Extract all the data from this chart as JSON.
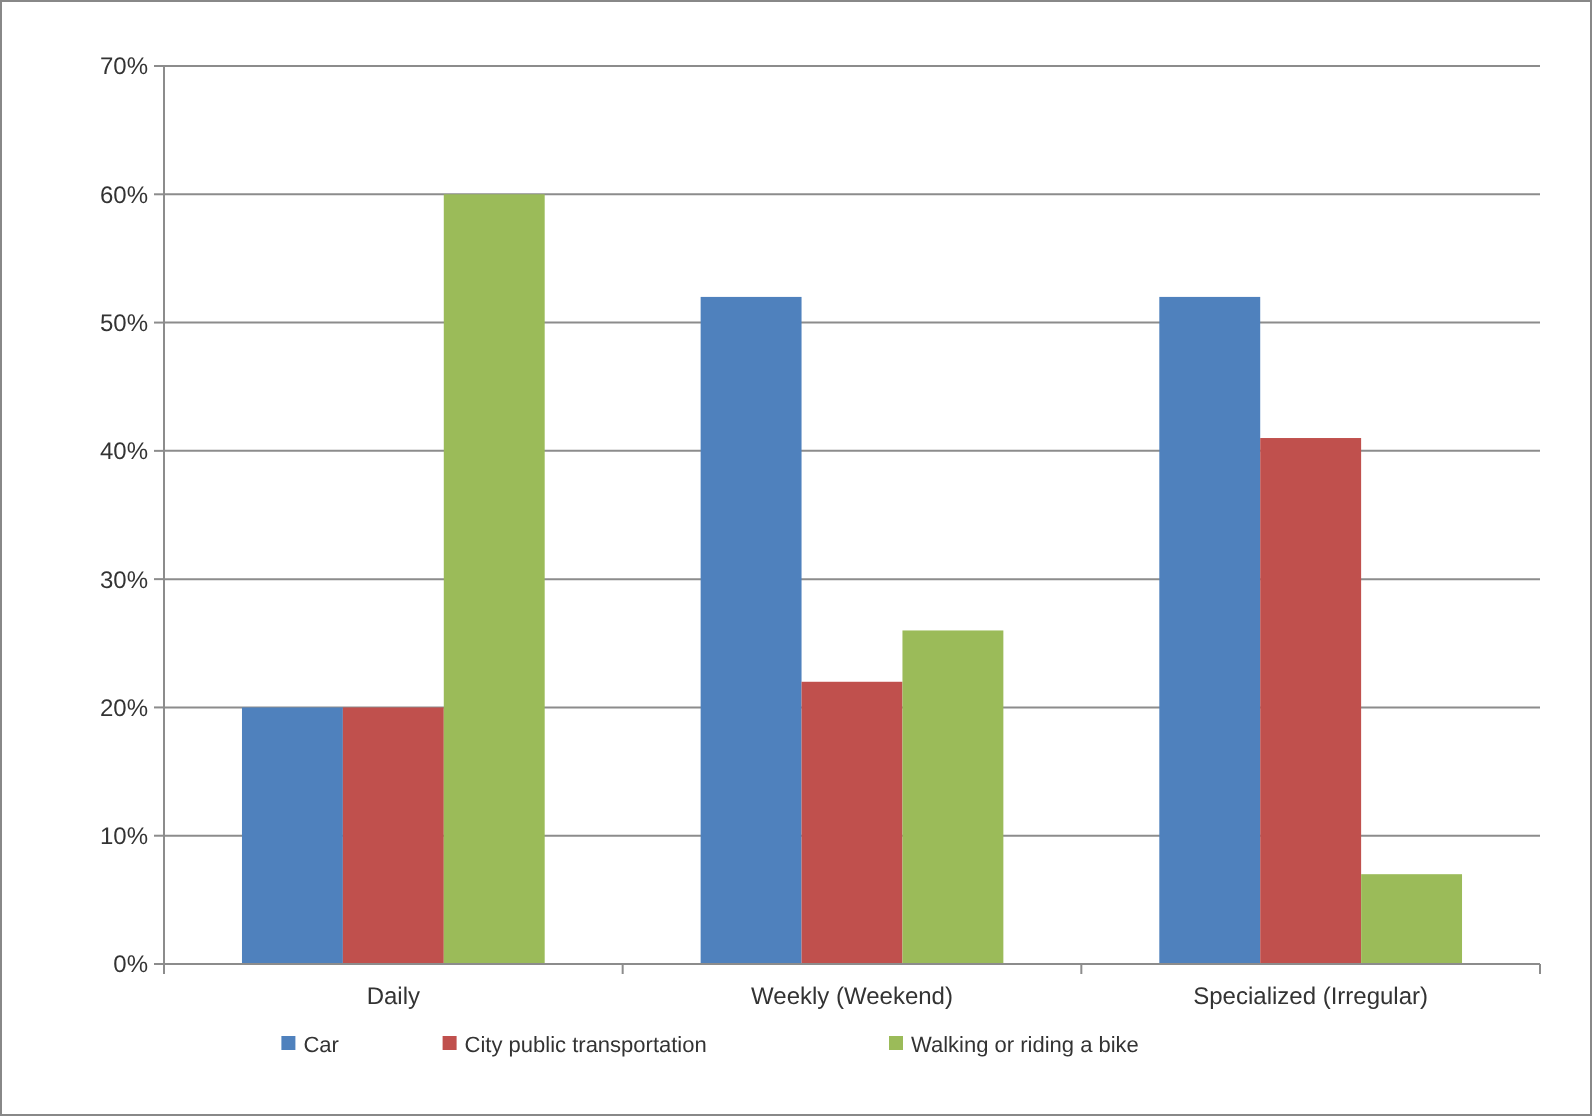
{
  "chart_data": {
    "type": "bar",
    "categories": [
      "Daily",
      "Weekly (Weekend)",
      "Specialized (Irregular)"
    ],
    "series": [
      {
        "name": "Car",
        "color": "#4f81bd",
        "values": [
          20,
          52,
          52
        ]
      },
      {
        "name": "City public transportation",
        "color": "#c0504d",
        "values": [
          20,
          22,
          41
        ]
      },
      {
        "name": "Walking or riding a bike",
        "color": "#9bbb59",
        "values": [
          60,
          26,
          7
        ]
      }
    ],
    "ylim": [
      0,
      70
    ],
    "yticks": [
      {
        "value": 0,
        "label": "0%"
      },
      {
        "value": 10,
        "label": "10%"
      },
      {
        "value": 20,
        "label": "20%"
      },
      {
        "value": 30,
        "label": "30%"
      },
      {
        "value": 40,
        "label": "40%"
      },
      {
        "value": 50,
        "label": "50%"
      },
      {
        "value": 60,
        "label": "60%"
      },
      {
        "value": 70,
        "label": "70%"
      }
    ],
    "grid": "y",
    "legend": "bottom"
  }
}
